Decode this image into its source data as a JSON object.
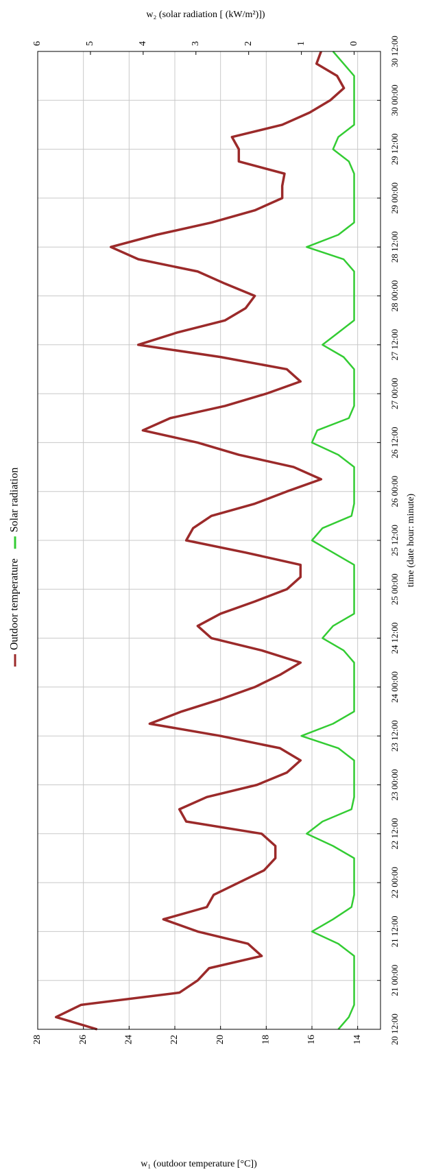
{
  "chart_data": {
    "type": "line",
    "xlabel": "time (date hour: minute)",
    "ylabel": "w₁ (outdoor temperature [°C])",
    "y2label": "w₂ (solar radiation [ (kW/m²)])",
    "x": [
      "20 12:00",
      "20 15:00",
      "20 18:00",
      "20 21:00",
      "21 00:00",
      "21 03:00",
      "21 06:00",
      "21 09:00",
      "21 12:00",
      "21 15:00",
      "21 18:00",
      "21 21:00",
      "22 00:00",
      "22 03:00",
      "22 06:00",
      "22 09:00",
      "22 12:00",
      "22 15:00",
      "22 18:00",
      "22 21:00",
      "23 00:00",
      "23 03:00",
      "23 06:00",
      "23 09:00",
      "23 12:00",
      "23 15:00",
      "23 18:00",
      "23 21:00",
      "24 00:00",
      "24 03:00",
      "24 06:00",
      "24 09:00",
      "24 12:00",
      "24 15:00",
      "24 18:00",
      "24 21:00",
      "25 00:00",
      "25 03:00",
      "25 06:00",
      "25 09:00",
      "25 12:00",
      "25 15:00",
      "25 18:00",
      "25 21:00",
      "26 00:00",
      "26 03:00",
      "26 06:00",
      "26 09:00",
      "26 12:00",
      "26 15:00",
      "26 18:00",
      "26 21:00",
      "27 00:00",
      "27 03:00",
      "27 06:00",
      "27 09:00",
      "27 12:00",
      "27 15:00",
      "27 18:00",
      "27 21:00",
      "28 00:00",
      "28 03:00",
      "28 06:00",
      "28 09:00",
      "28 12:00",
      "28 15:00",
      "28 18:00",
      "28 21:00",
      "29 00:00",
      "29 03:00",
      "29 06:00",
      "29 09:00",
      "29 12:00",
      "29 15:00",
      "29 18:00",
      "29 21:00",
      "30 00:00",
      "30 03:00",
      "30 06:00",
      "30 09:00",
      "30 12:00"
    ],
    "series": [
      {
        "name": "Outdoor temperature",
        "color": "#9b2a2a",
        "values": [
          25.4,
          27.2,
          26.1,
          21.8,
          21.0,
          20.5,
          18.2,
          18.8,
          21.0,
          22.5,
          20.6,
          20.3,
          19.2,
          18.1,
          17.6,
          17.6,
          18.2,
          21.5,
          21.8,
          20.6,
          18.4,
          17.1,
          16.5,
          17.4,
          20.0,
          23.1,
          21.7,
          20.0,
          18.5,
          17.4,
          16.5,
          18.2,
          20.4,
          21.0,
          20.0,
          18.5,
          17.1,
          16.5,
          16.5,
          18.9,
          21.5,
          21.2,
          20.4,
          18.5,
          17.1,
          15.6,
          16.8,
          19.2,
          21.0,
          23.4,
          22.2,
          19.8,
          18.0,
          16.5,
          17.1,
          20.0,
          23.6,
          21.9,
          19.8,
          18.9,
          18.5,
          19.8,
          21.0,
          23.6,
          24.8,
          22.8,
          20.4,
          18.5,
          17.3,
          17.3,
          17.2,
          19.2,
          19.2,
          19.5,
          17.3,
          16.1,
          15.2,
          14.6,
          14.9,
          15.8,
          15.6
        ]
      },
      {
        "name": "Solar radiation",
        "color": "#33cc33",
        "axis": "y2",
        "values": [
          0.3,
          0.1,
          0,
          0,
          0,
          0,
          0,
          0.3,
          0.8,
          0.4,
          0.05,
          0,
          0,
          0,
          0,
          0.4,
          0.9,
          0.6,
          0.05,
          0,
          0,
          0,
          0,
          0.3,
          1.0,
          0.4,
          0,
          0,
          0,
          0,
          0,
          0.2,
          0.6,
          0.4,
          0,
          0,
          0,
          0,
          0,
          0.4,
          0.8,
          0.6,
          0.05,
          0,
          0,
          0,
          0,
          0.3,
          0.8,
          0.7,
          0.1,
          0,
          0,
          0,
          0,
          0.2,
          0.6,
          0.3,
          0,
          0,
          0,
          0,
          0,
          0.2,
          0.9,
          0.3,
          0,
          0,
          0,
          0,
          0,
          0.1,
          0.4,
          0.3,
          0,
          0,
          0,
          0,
          0,
          0.2,
          0.4
        ]
      }
    ],
    "xlim": [
      "20 12:00",
      "30 12:00"
    ],
    "xticks": [
      "20 12:00",
      "21 00:00",
      "21 12:00",
      "22 00:00",
      "22 12:00",
      "23 00:00",
      "23 12:00",
      "24 00:00",
      "24 12:00",
      "25 00:00",
      "25 12:00",
      "26 00:00",
      "26 12:00",
      "27 00:00",
      "27 12:00",
      "28 00:00",
      "28 12:00",
      "29 00:00",
      "29 12:00",
      "30 00:00",
      "30 12:00"
    ],
    "ylim": [
      13,
      28
    ],
    "yticks": [
      14,
      16,
      18,
      20,
      22,
      24,
      26,
      28
    ],
    "y2lim": [
      -0.5,
      6
    ],
    "y2ticks": [
      0,
      1,
      2,
      3,
      4,
      5,
      6
    ],
    "grid": true,
    "legend": "top"
  }
}
